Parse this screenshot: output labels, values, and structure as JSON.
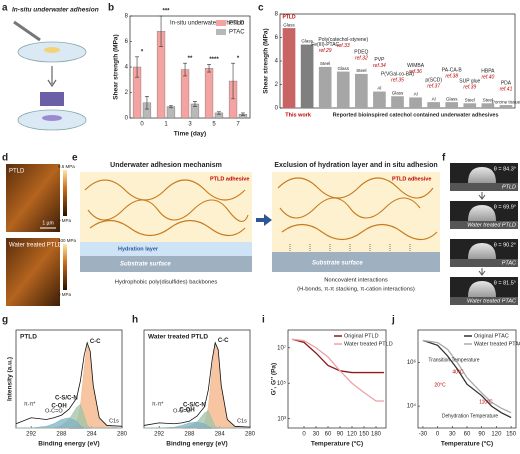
{
  "panel_a": {
    "label": "a",
    "title": "In-situ underwater adhesion"
  },
  "panel_d": {
    "label": "d",
    "images": [
      {
        "title": "PTLD",
        "max": "9.5 MPa",
        "min": "0 MPa"
      },
      {
        "title": "Water treated PTLD",
        "max": "100 MPa",
        "min": "0 MPa"
      }
    ],
    "scale_bar": "1 µm"
  },
  "panel_e": {
    "label": "e",
    "left_title": "Underwater adhesion mechanism",
    "right_title": "Exclusion of hydration layer and in situ adhesion",
    "adhesive": "PTLD adhesive",
    "hydration": "Hydration layer",
    "substrate": "Substrate surface",
    "left_caption": "Hydrophobic poly(disulfides) backbones",
    "right_caption": "Noncovalent interactions",
    "right_caption_2": "(H-bonds, π-π stacking, π-cation interactions)"
  },
  "panel_f": {
    "label": "f",
    "rows": [
      {
        "angle": "θ = 84.3°",
        "name": "PTLD"
      },
      {
        "angle": "θ = 69.9°",
        "name": "Water treated PTLD"
      },
      {
        "angle": "θ = 90.2°",
        "name": "PTAC"
      },
      {
        "angle": "θ = 81.5°",
        "name": "Water treated PTAC"
      }
    ]
  },
  "chart_data": [
    {
      "panel": "b",
      "type": "bar",
      "title": "In-situ underwater adhesion",
      "categories": [
        "0",
        "1",
        "3",
        "5",
        "7"
      ],
      "series": [
        {
          "name": "PTLD",
          "color": "#f4a3a3",
          "values": [
            4.0,
            6.8,
            3.8,
            3.9,
            2.9
          ],
          "errors": [
            0.8,
            1.2,
            0.5,
            0.3,
            1.4
          ]
        },
        {
          "name": "PTAC",
          "color": "#b8b8b8",
          "values": [
            1.2,
            0.9,
            1.1,
            0.4,
            0.3
          ],
          "errors": [
            0.5,
            0.1,
            0.2,
            0.1,
            0.1
          ]
        }
      ],
      "significance": [
        "*",
        "***",
        "**",
        "****",
        "*"
      ],
      "xlabel": "Time (day)",
      "ylabel": "Shear strength (MPa)",
      "ylim": [
        0,
        8
      ],
      "yticks": [
        0,
        2,
        4,
        6,
        8
      ],
      "legend": "upper right"
    },
    {
      "panel": "c",
      "type": "bar",
      "categories": [
        "PTLD",
        null,
        "Fe(III)-PTAC",
        "Poly(catechol-styrene)",
        "PDEQ",
        "PVP",
        "P(VGal-co-BA)",
        "WIMBA",
        "p(SCD)",
        "PA-CA-B",
        "SUP glue",
        "HBPA",
        "PDA"
      ],
      "references": [
        null,
        null,
        "ref.29",
        "ref.33",
        "ref.32",
        "ref.34",
        "ref.35",
        "ref.36",
        "ref.37",
        "ref.38",
        "ref.39",
        "ref.40",
        "ref.41"
      ],
      "substrates": [
        "Glass",
        "Glass",
        "Steel",
        "Glass",
        "Steel",
        "Al",
        "Glass",
        "Al",
        "Al",
        "Glass",
        "Steel",
        "Steel",
        "Porcine tissue"
      ],
      "values": [
        6.8,
        5.4,
        3.5,
        3.1,
        2.9,
        1.4,
        1.0,
        0.9,
        0.5,
        0.5,
        0.4,
        0.4,
        0.25
      ],
      "colors": [
        "#c86464",
        "#7f7f7f",
        "#a6a6a6",
        "#a6a6a6",
        "#a6a6a6",
        "#a6a6a6",
        "#a6a6a6",
        "#a6a6a6",
        "#a6a6a6",
        "#a6a6a6",
        "#a6a6a6",
        "#a6a6a6",
        "#a6a6a6"
      ],
      "groups": [
        "This work",
        "Reported bioinspired catechol contained underwater adhesives"
      ],
      "ylabel": "Shear strength (MPa)",
      "ylim": [
        0,
        8
      ],
      "yticks": [
        0,
        2,
        4,
        6,
        8
      ]
    },
    {
      "panel": "g",
      "type": "line",
      "title": "PTLD",
      "x": [
        294,
        292,
        290,
        289,
        288,
        287,
        286,
        285.5,
        285,
        284.6,
        284.2,
        283.8,
        283,
        282,
        280
      ],
      "values": [
        0.05,
        0.12,
        0.1,
        0.12,
        0.15,
        0.22,
        0.35,
        0.55,
        0.85,
        1.0,
        0.9,
        0.5,
        0.12,
        0.03,
        0.02
      ],
      "series": [
        {
          "name": "C-C",
          "color": "#f4b183",
          "values": [
            0,
            0,
            0,
            0,
            0,
            0,
            0.04,
            0.25,
            0.7,
            0.97,
            0.88,
            0.48,
            0.11,
            0.02,
            0
          ]
        },
        {
          "name": "C-S/C-N",
          "color": "#9dc3a6",
          "values": [
            0,
            0,
            0,
            0,
            0.03,
            0.1,
            0.24,
            0.28,
            0.15,
            0.04,
            0,
            0,
            0,
            0,
            0
          ]
        },
        {
          "name": "C-OH",
          "color": "#7fb2c4",
          "values": [
            0,
            0,
            0.02,
            0.05,
            0.1,
            0.12,
            0.08,
            0.03,
            0,
            0,
            0,
            0,
            0,
            0,
            0
          ]
        }
      ],
      "annotations": [
        "O-C=O",
        "π-π*",
        "C1s"
      ],
      "xlabel": "Binding energy (eV)",
      "ylabel": "Intensity (a.u.)",
      "xlim": [
        294,
        280
      ],
      "xticks": [
        292,
        288,
        284,
        280
      ],
      "ylim": [
        0,
        1.15
      ]
    },
    {
      "panel": "h",
      "type": "line",
      "title": "Water treated PTLD",
      "x": [
        294,
        292,
        290,
        289,
        288,
        287,
        286,
        285.5,
        285,
        284.6,
        284.2,
        283.8,
        283,
        282,
        280
      ],
      "values": [
        0.03,
        0.06,
        0.05,
        0.06,
        0.08,
        0.14,
        0.25,
        0.45,
        0.8,
        1.0,
        0.92,
        0.5,
        0.1,
        0.02,
        0.01
      ],
      "series": [
        {
          "name": "C-C",
          "color": "#f4b183",
          "values": [
            0,
            0,
            0,
            0,
            0,
            0,
            0.04,
            0.25,
            0.7,
            0.98,
            0.9,
            0.49,
            0.1,
            0.02,
            0
          ]
        },
        {
          "name": "C-S/C-N",
          "color": "#9dc3a6",
          "values": [
            0,
            0,
            0,
            0,
            0.02,
            0.07,
            0.18,
            0.2,
            0.1,
            0.02,
            0,
            0,
            0,
            0,
            0
          ]
        },
        {
          "name": "C-OH",
          "color": "#7fb2c4",
          "values": [
            0,
            0,
            0.01,
            0.03,
            0.06,
            0.07,
            0.05,
            0.02,
            0,
            0,
            0,
            0,
            0,
            0,
            0
          ]
        }
      ],
      "annotations": [
        "O-C=O",
        "π-π*",
        "C1s"
      ],
      "xlabel": "Binding energy (eV)",
      "xlim": [
        294,
        280
      ],
      "xticks": [
        292,
        288,
        284,
        280
      ],
      "ylim": [
        0,
        1.15
      ]
    },
    {
      "panel": "i",
      "type": "line",
      "log_y": true,
      "x": [
        -30,
        0,
        30,
        60,
        90,
        120,
        150,
        180,
        200
      ],
      "series": [
        {
          "name": "Original PTLD",
          "color": "#8b1a1a",
          "values": [
            30000000,
            20000000,
            5000000,
            1000000,
            500000,
            400000,
            400000,
            400000,
            400000
          ]
        },
        {
          "name": "Water treated PTLD",
          "color": "#f0a0a8",
          "values": [
            30000000,
            25000000,
            10000000,
            3000000,
            500000,
            100000,
            30000,
            10000,
            10000
          ]
        }
      ],
      "xlabel": "Temperature (°C)",
      "ylabel": "G', G'' (Pa)",
      "xlim": [
        -40,
        205
      ],
      "xticks": [
        0,
        30,
        60,
        90,
        120,
        150,
        180
      ],
      "ylim": [
        300,
        100000000
      ],
      "yticks": [
        {
          "value": 1000,
          "label": "10³"
        },
        {
          "value": 100000,
          "label": "10⁵"
        },
        {
          "value": 10000000,
          "label": "10⁷"
        }
      ],
      "legend": "upper right"
    },
    {
      "panel": "j",
      "type": "line",
      "log_y": true,
      "x": [
        -30,
        0,
        20,
        40,
        60,
        90,
        110,
        130,
        150
      ],
      "series": [
        {
          "name": "Original PTAC",
          "color": "#333333",
          "values": [
            10000000,
            6000000,
            2000000,
            500000,
            100000,
            30000,
            10000,
            5000,
            3000
          ]
        },
        {
          "name": "Water treated PTAC",
          "color": "#aaaaaa",
          "values": [
            10000000,
            8000000,
            4000000,
            1000000,
            200000,
            40000,
            15000,
            8000,
            5000
          ]
        }
      ],
      "annotations": [
        "Transition Temperature",
        "40°C",
        "20°C",
        "110°C",
        "Dehydration Temperature"
      ],
      "xlabel": "Temperature (°C)",
      "xlim": [
        -40,
        160
      ],
      "xticks": [
        -30,
        0,
        30,
        60,
        90,
        120,
        150
      ],
      "ylim": [
        1000,
        30000000
      ],
      "yticks": [
        {
          "value": 10000,
          "label": "10⁴"
        },
        {
          "value": 1000000,
          "label": "10⁶"
        }
      ],
      "legend": "upper right"
    }
  ]
}
